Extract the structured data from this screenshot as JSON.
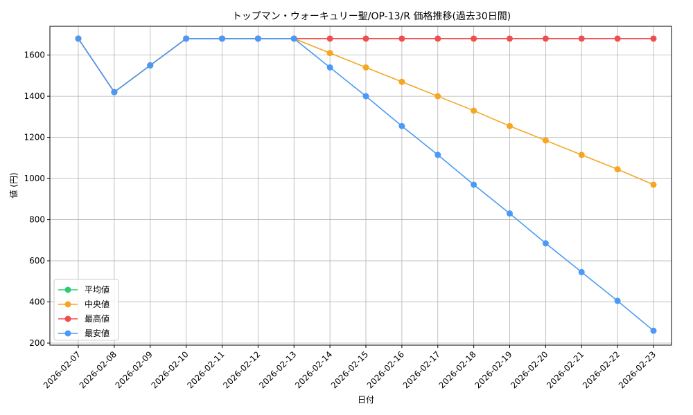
{
  "chart_data": {
    "type": "line",
    "title": "トップマン・ウォーキュリー聖/OP-13/R 価格推移(過去30日間)",
    "xlabel": "日付",
    "ylabel": "値 (円)",
    "ylim": [
      190,
      1740
    ],
    "yticks": [
      200,
      400,
      600,
      800,
      1000,
      1200,
      1400,
      1600
    ],
    "grid": true,
    "legend_position": "bottom-left",
    "categories": [
      "2026-02-07",
      "2026-02-08",
      "2026-02-09",
      "2026-02-10",
      "2026-02-11",
      "2026-02-12",
      "2026-02-13",
      "2026-02-14",
      "2026-02-15",
      "2026-02-16",
      "2026-02-17",
      "2026-02-18",
      "2026-02-19",
      "2026-02-20",
      "2026-02-21",
      "2026-02-22",
      "2026-02-23"
    ],
    "series": [
      {
        "name": "平均値",
        "color": "#2ecc71",
        "values": [
          1680,
          1420,
          1550,
          1680,
          1680,
          1680,
          1680,
          null,
          null,
          null,
          null,
          null,
          null,
          null,
          null,
          null,
          null
        ]
      },
      {
        "name": "中央値",
        "color": "#f5a623",
        "values": [
          1680,
          1420,
          1550,
          1680,
          1680,
          1680,
          1680,
          1610,
          1540,
          1470,
          1400,
          1330,
          1255,
          1185,
          1115,
          1045,
          970
        ]
      },
      {
        "name": "最高値",
        "color": "#f04e4e",
        "values": [
          1680,
          1420,
          1550,
          1680,
          1680,
          1680,
          1680,
          1680,
          1680,
          1680,
          1680,
          1680,
          1680,
          1680,
          1680,
          1680,
          1680
        ]
      },
      {
        "name": "最安値",
        "color": "#4a9af5",
        "values": [
          1680,
          1420,
          1550,
          1680,
          1680,
          1680,
          1680,
          1540,
          1400,
          1255,
          1115,
          970,
          830,
          685,
          545,
          405,
          260
        ]
      }
    ]
  }
}
